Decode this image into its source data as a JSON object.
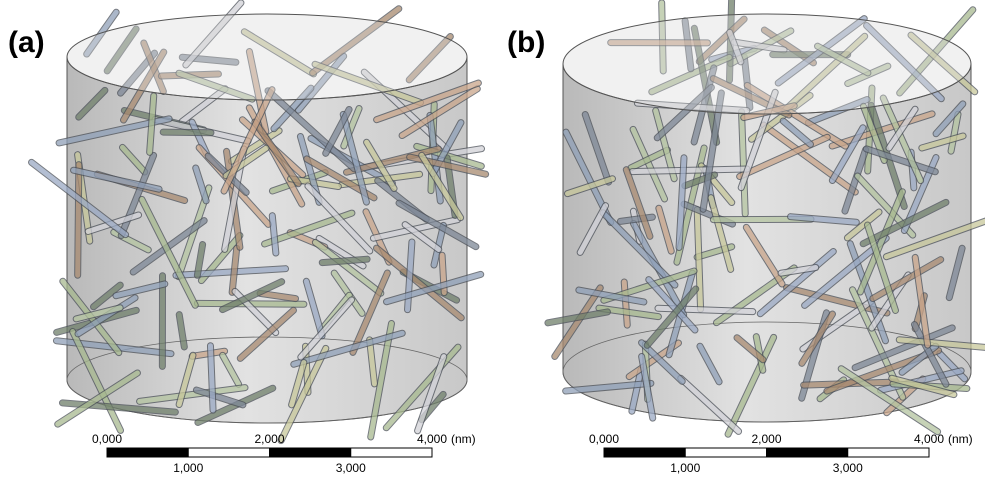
{
  "panels": [
    {
      "label": "(a)",
      "scale_bar": {
        "top_labels": [
          "0,000",
          "2,000",
          "4,000"
        ],
        "bottom_labels": [
          "1,000",
          "3,000"
        ],
        "unit": "(nm)"
      }
    },
    {
      "label": "(b)",
      "scale_bar": {
        "top_labels": [
          "0,000",
          "2,000",
          "4,000"
        ],
        "bottom_labels": [
          "1,000",
          "3,000"
        ],
        "unit": "(nm)"
      }
    }
  ]
}
